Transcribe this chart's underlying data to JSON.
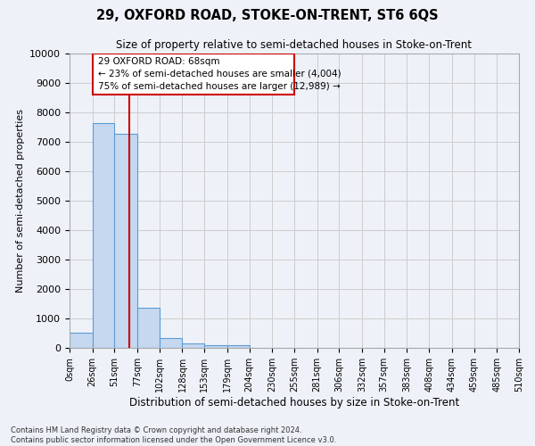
{
  "title": "29, OXFORD ROAD, STOKE-ON-TRENT, ST6 6QS",
  "subtitle": "Size of property relative to semi-detached houses in Stoke-on-Trent",
  "xlabel": "Distribution of semi-detached houses by size in Stoke-on-Trent",
  "ylabel": "Number of semi-detached properties",
  "footer_line1": "Contains HM Land Registry data © Crown copyright and database right 2024.",
  "footer_line2": "Contains public sector information licensed under the Open Government Licence v3.0.",
  "annotation_title": "29 OXFORD ROAD: 68sqm",
  "annotation_line1": "← 23% of semi-detached houses are smaller (4,004)",
  "annotation_line2": "75% of semi-detached houses are larger (12,989) →",
  "property_size": 68,
  "bin_edges": [
    0,
    26,
    51,
    77,
    102,
    128,
    153,
    179,
    204,
    230,
    255,
    281,
    306,
    332,
    357,
    383,
    408,
    434,
    459,
    485,
    510
  ],
  "bar_heights": [
    530,
    7650,
    7280,
    1360,
    320,
    160,
    100,
    80,
    0,
    0,
    0,
    0,
    0,
    0,
    0,
    0,
    0,
    0,
    0,
    0
  ],
  "bar_color": "#c5d8f0",
  "bar_edge_color": "#5b9bd5",
  "vline_color": "#cc0000",
  "vline_x": 68,
  "ylim": [
    0,
    10000
  ],
  "yticks": [
    0,
    1000,
    2000,
    3000,
    4000,
    5000,
    6000,
    7000,
    8000,
    9000,
    10000
  ],
  "grid_color": "#cccccc",
  "bg_color": "#eef2f8",
  "annotation_box_color": "#ffffff",
  "annotation_border_color": "#cc0000"
}
